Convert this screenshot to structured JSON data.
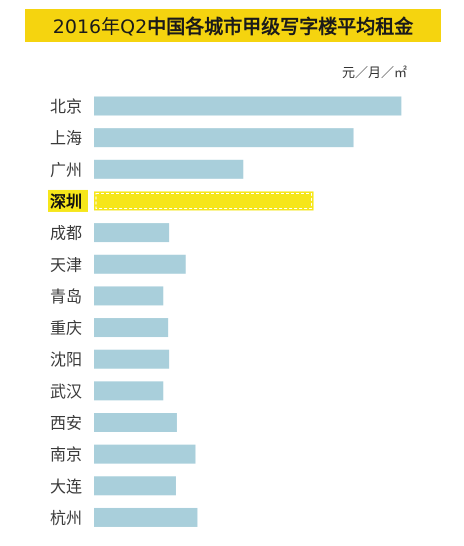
{
  "title": {
    "prefix": "2016年Q2",
    "main": "中国各城市甲级写字楼平均租金"
  },
  "unit": "元／月／㎡",
  "colors": {
    "title_bg": "#f5d40f",
    "bar": "#a9cfdb",
    "highlight_bar": "#f6e61a",
    "highlight_label_bg": "#f6e61a"
  },
  "chart_data": {
    "type": "bar",
    "orientation": "horizontal",
    "title": "2016年Q2中国各城市甲级写字楼平均租金",
    "unit": "元／月／㎡",
    "categories": [
      "北京",
      "上海",
      "广州",
      "深圳",
      "成都",
      "天津",
      "青岛",
      "重庆",
      "沈阳",
      "武汉",
      "西安",
      "南京",
      "大连",
      "杭州"
    ],
    "values": [
      315,
      266,
      153,
      225,
      77,
      94,
      71,
      76,
      77,
      71,
      85,
      104,
      84,
      106
    ],
    "highlight": "深圳",
    "xlim": [
      0,
      330
    ],
    "grid": false,
    "legend": "none"
  }
}
